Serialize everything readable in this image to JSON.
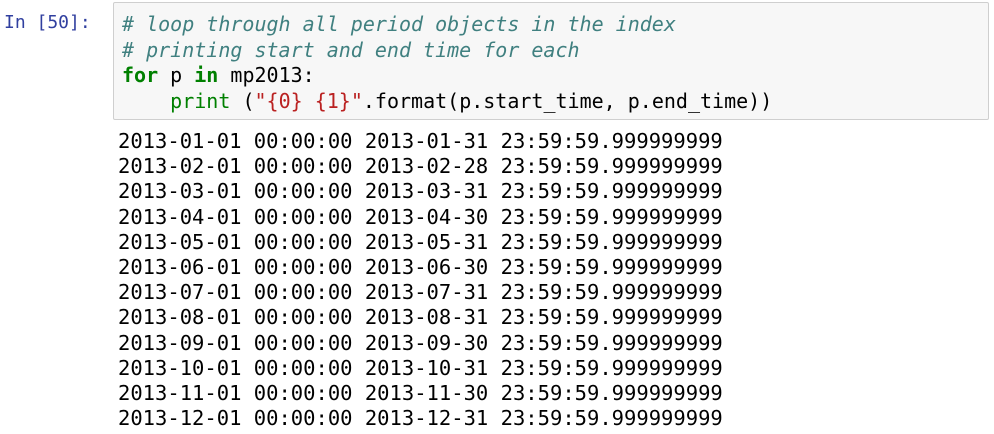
{
  "cell": {
    "prompt": "In [50]:",
    "code": [
      [
        "# loop through all period objects in the index"
      ],
      [
        "# printing start and end time for each"
      ],
      [
        "for",
        "p",
        "in",
        "mp2013:"
      ],
      [
        "print",
        "(",
        "\"{0} {1}\"",
        ".format(p.start_time, p.end_time))"
      ]
    ],
    "output": [
      "2013-01-01 00:00:00 2013-01-31 23:59:59.999999999",
      "2013-02-01 00:00:00 2013-02-28 23:59:59.999999999",
      "2013-03-01 00:00:00 2013-03-31 23:59:59.999999999",
      "2013-04-01 00:00:00 2013-04-30 23:59:59.999999999",
      "2013-05-01 00:00:00 2013-05-31 23:59:59.999999999",
      "2013-06-01 00:00:00 2013-06-30 23:59:59.999999999",
      "2013-07-01 00:00:00 2013-07-31 23:59:59.999999999",
      "2013-08-01 00:00:00 2013-08-31 23:59:59.999999999",
      "2013-09-01 00:00:00 2013-09-30 23:59:59.999999999",
      "2013-10-01 00:00:00 2013-10-31 23:59:59.999999999",
      "2013-11-01 00:00:00 2013-11-30 23:59:59.999999999",
      "2013-12-01 00:00:00 2013-12-31 23:59:59.999999999"
    ]
  }
}
